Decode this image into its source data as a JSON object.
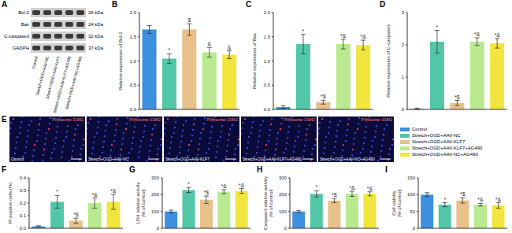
{
  "legend": {
    "names": [
      "Control",
      "Stretch+OGD+AAV-NC",
      "Stretch+OGD+AAV-KLF7",
      "Stretch+OGD+AAV-KLF7+AG490",
      "Stretch+OGD+AAV-NC+AG490"
    ],
    "colors": [
      "#3d8fe0",
      "#52c7a8",
      "#e8c08a",
      "#b9ea8f",
      "#f2e63e"
    ]
  },
  "blot": {
    "label": "A",
    "rows": [
      {
        "name": "Bcl-2",
        "size": "26 kDa"
      },
      {
        "name": "Bax",
        "size": "24 kDa"
      },
      {
        "name": "C-caspase3",
        "size": "32 kDa"
      },
      {
        "name": "GADPH",
        "size": "37 kDa"
      }
    ],
    "lanes": [
      "Control",
      "Stretch+OGD+AAV-NC",
      "Stretch+OGD+AAV-KLF7",
      "Stretch+OGD+AAV-KLF7+AG490",
      "Stretch+OGD+AAV-NC+AG490"
    ]
  },
  "images": {
    "label": "E",
    "channel": "PI/Hoechst 33342",
    "captions": [
      "Control",
      "Stretch+OGD+AAV-NC",
      "Stretch+OGD+AAV-KLF7",
      "Stretch+OGD+AAV-KLF7+AG490",
      "Stretch+OGD+AAV-NC+AG490"
    ]
  },
  "chart_data": [
    {
      "type": "bar",
      "label": "B",
      "ylabel": [
        "Relative expression of Bcl-2"
      ],
      "values": [
        1.65,
        1.05,
        1.65,
        1.18,
        1.13
      ],
      "errors": [
        0.08,
        0.1,
        0.12,
        0.1,
        0.08
      ],
      "annotations": [
        "",
        "*",
        "$",
        "&",
        "&"
      ],
      "ylim": [
        0,
        2
      ],
      "yticks": [
        {
          "value": 0,
          "label": "0.0"
        },
        {
          "value": 0.5,
          "label": "0.5"
        },
        {
          "value": 1,
          "label": "1.0"
        },
        {
          "value": 1.5,
          "label": "1.5"
        },
        {
          "value": 2,
          "label": "2.0"
        }
      ],
      "tick_labels": "y"
    },
    {
      "type": "bar",
      "label": "C",
      "ylabel": [
        "Relative expression of Bax"
      ],
      "values": [
        0.05,
        1.35,
        0.15,
        1.35,
        1.33
      ],
      "errors": [
        0.03,
        0.2,
        0.04,
        0.1,
        0.1
      ],
      "annotations": [
        "",
        "*",
        "*$",
        "*&",
        "*&"
      ],
      "ylim": [
        0,
        2
      ],
      "yticks": [
        {
          "value": 0,
          "label": "0.0"
        },
        {
          "value": 0.5,
          "label": "0.5"
        },
        {
          "value": 1,
          "label": "1.0"
        },
        {
          "value": 1.5,
          "label": "1.5"
        },
        {
          "value": 2,
          "label": "2.0"
        }
      ],
      "tick_labels": "y"
    },
    {
      "type": "bar",
      "label": "D",
      "ylabel": [
        "Relative expression of C-caspase3"
      ],
      "values": [
        0.02,
        2.1,
        0.2,
        2.1,
        2.05
      ],
      "errors": [
        0.02,
        0.35,
        0.08,
        0.12,
        0.15
      ],
      "annotations": [
        "",
        "*",
        "*$",
        "*&",
        "*&"
      ],
      "ylim": [
        0,
        3
      ],
      "yticks": [
        0,
        1,
        2,
        3
      ],
      "tick_labels": "y"
    },
    {
      "type": "bar",
      "label": "F",
      "ylabel": [
        "PI positive cells (%)"
      ],
      "values": [
        0.015,
        0.21,
        0.06,
        0.2,
        0.21
      ],
      "errors": [
        0.005,
        0.05,
        0.02,
        0.04,
        0.06
      ],
      "annotations": [
        "",
        "*",
        "*$",
        "*&",
        "*&"
      ],
      "ylim": [
        0,
        0.4
      ],
      "yticks": [
        {
          "value": 0,
          "label": "0.0"
        },
        0.1,
        0.2,
        0.3,
        0.4
      ],
      "tick_labels": "y"
    },
    {
      "type": "bar",
      "label": "G",
      "ylabel": [
        "LDH relative activity",
        "(% of control)"
      ],
      "values": [
        100,
        228,
        170,
        218,
        222
      ],
      "errors": [
        8,
        15,
        22,
        12,
        14
      ],
      "annotations": [
        "",
        "*",
        "*$",
        "*&",
        "*&"
      ],
      "ylim": [
        0,
        300
      ],
      "yticks": [
        0,
        100,
        200,
        300
      ],
      "tick_labels": "y"
    },
    {
      "type": "bar",
      "label": "H",
      "ylabel": [
        "Caspase3 relative activity",
        "(% of control)"
      ],
      "values": [
        100,
        205,
        165,
        205,
        205
      ],
      "errors": [
        6,
        18,
        12,
        15,
        12
      ],
      "annotations": [
        "",
        "*",
        "*$",
        "*&",
        "*&"
      ],
      "ylim": [
        0,
        300
      ],
      "yticks": [
        0,
        100,
        200,
        300
      ],
      "tick_labels": "y"
    },
    {
      "type": "bar",
      "label": "I",
      "ylabel": [
        "Cell viability",
        "(% of control)"
      ],
      "values": [
        100,
        70,
        83,
        70,
        68
      ],
      "errors": [
        6,
        6,
        8,
        4,
        8
      ],
      "annotations": [
        "",
        "*",
        "*$",
        "*&",
        "*&"
      ],
      "ylim": [
        0,
        150
      ],
      "yticks": [
        0,
        50,
        100,
        150
      ],
      "tick_labels": "y"
    }
  ]
}
